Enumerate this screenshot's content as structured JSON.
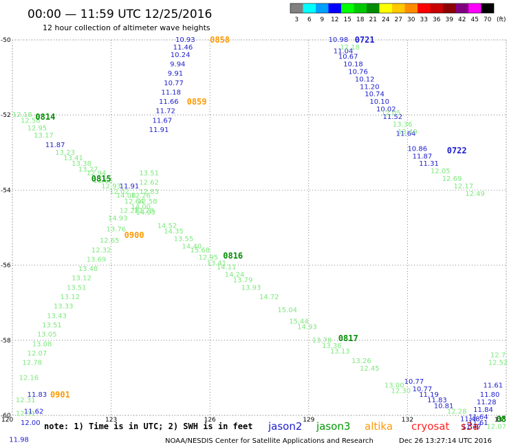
{
  "chart_data": {
    "type": "scatter",
    "title": "00:00 — 11:59 UTC 12/25/2016",
    "subtitle": "12 hour collection of altimeter wave heights",
    "xlim": [
      120,
      135
    ],
    "ylim": [
      -60,
      -50
    ],
    "x_ticks": [
      "120",
      "123",
      "126",
      "129",
      "132",
      "135"
    ],
    "y_ticks": [
      "-50",
      "-52",
      "-54",
      "-56",
      "-58",
      "-60"
    ],
    "grid": true,
    "colorbar": {
      "labels": [
        "3",
        "6",
        "9",
        "12",
        "15",
        "18",
        "21",
        "24",
        "27",
        "30",
        "33",
        "36",
        "39",
        "42",
        "45",
        "70"
      ],
      "unit": "(ft)",
      "colors": [
        "#808080",
        "#00ffff",
        "#00a0ff",
        "#0000ff",
        "#00ff00",
        "#00c800",
        "#008c00",
        "#ffff00",
        "#ffc800",
        "#ff8c00",
        "#ff0000",
        "#c80000",
        "#8b0000",
        "#800080",
        "#ff00ff",
        "#000000"
      ]
    },
    "series": [
      {
        "name": "jason2",
        "color": "#1c1ccd",
        "points": [
          [
            125.25,
            -50.0,
            "10.93"
          ],
          [
            125.18,
            -50.2,
            "11.46"
          ],
          [
            125.1,
            -50.4,
            "10.24"
          ],
          [
            125.02,
            -50.65,
            "9.94"
          ],
          [
            124.95,
            -50.9,
            "9.91"
          ],
          [
            124.9,
            -51.15,
            "10.77"
          ],
          [
            124.82,
            -51.4,
            "11.18"
          ],
          [
            124.75,
            -51.65,
            "11.66"
          ],
          [
            124.65,
            -51.9,
            "11.72"
          ],
          [
            124.55,
            -52.15,
            "11.67"
          ],
          [
            124.45,
            -52.4,
            "11.91"
          ],
          [
            121.3,
            -52.8,
            "11.87"
          ],
          [
            123.55,
            -53.9,
            "11.91"
          ],
          [
            129.9,
            -50.0,
            "10.98"
          ],
          [
            130.05,
            -50.3,
            "11.04"
          ],
          [
            130.2,
            -50.45,
            "10.67"
          ],
          [
            130.35,
            -50.65,
            "10.18"
          ],
          [
            130.5,
            -50.85,
            "10.76"
          ],
          [
            130.7,
            -51.05,
            "10.12"
          ],
          [
            130.85,
            -51.25,
            "11.20"
          ],
          [
            131.0,
            -51.45,
            "10.74"
          ],
          [
            131.15,
            -51.65,
            "10.10"
          ],
          [
            131.35,
            -51.85,
            "10.02"
          ],
          [
            131.55,
            -52.05,
            "11.52"
          ],
          [
            131.95,
            -52.5,
            "11.64"
          ],
          [
            132.3,
            -52.9,
            "10.86"
          ],
          [
            132.45,
            -53.1,
            "11.87"
          ],
          [
            132.65,
            -53.3,
            "11.31"
          ],
          [
            132.2,
            -59.1,
            "10.77"
          ],
          [
            132.45,
            -59.3,
            "10.77"
          ],
          [
            132.65,
            -59.45,
            "11.19"
          ],
          [
            132.9,
            -59.6,
            "11.83"
          ],
          [
            133.1,
            -59.75,
            "10.81"
          ],
          [
            134.6,
            -59.2,
            "11.61"
          ],
          [
            134.5,
            -59.45,
            "11.80"
          ],
          [
            134.4,
            -59.65,
            "11.28"
          ],
          [
            134.3,
            -59.85,
            "11.84"
          ],
          [
            134.15,
            -60.05,
            "11.64"
          ],
          [
            133.9,
            -60.1,
            "11.48"
          ],
          [
            134.15,
            -60.2,
            "11.61"
          ],
          [
            133.95,
            -60.3,
            "11.47"
          ],
          [
            120.75,
            -59.45,
            "11.83"
          ],
          [
            120.65,
            -59.9,
            "11.62"
          ],
          [
            120.55,
            -60.2,
            "12.00"
          ],
          [
            120.2,
            -60.65,
            "11.98"
          ]
        ]
      },
      {
        "name": "jason3",
        "color": "#7ce87c",
        "points": [
          [
            120.3,
            -52.0,
            "12.18"
          ],
          [
            120.55,
            -52.15,
            "12.58"
          ],
          [
            120.75,
            -52.35,
            "12.95"
          ],
          [
            120.95,
            -52.55,
            "13.17"
          ],
          [
            121.6,
            -53.0,
            "13.23"
          ],
          [
            121.85,
            -53.15,
            "13.41"
          ],
          [
            122.1,
            -53.3,
            "13.38"
          ],
          [
            122.3,
            -53.45,
            "13.27"
          ],
          [
            122.55,
            -53.55,
            "12.94"
          ],
          [
            122.75,
            -53.75,
            "13.68"
          ],
          [
            123.0,
            -53.9,
            "12.93"
          ],
          [
            123.25,
            -54.05,
            "12.02"
          ],
          [
            123.45,
            -54.15,
            "14.08"
          ],
          [
            123.7,
            -54.3,
            "12.64"
          ],
          [
            123.9,
            -54.45,
            "14.00"
          ],
          [
            124.05,
            -54.6,
            "14.93"
          ],
          [
            124.7,
            -54.95,
            "14.52"
          ],
          [
            124.9,
            -55.1,
            "14.35"
          ],
          [
            125.2,
            -55.3,
            "13.55"
          ],
          [
            125.45,
            -55.5,
            "14.40"
          ],
          [
            125.7,
            -55.6,
            "15.68"
          ],
          [
            125.95,
            -55.8,
            "12.95"
          ],
          [
            126.2,
            -55.95,
            "13.41"
          ],
          [
            126.5,
            -56.05,
            "14.11"
          ],
          [
            126.75,
            -56.25,
            "14.24"
          ],
          [
            127.0,
            -56.4,
            "13.79"
          ],
          [
            127.25,
            -56.6,
            "13.93"
          ],
          [
            127.8,
            -56.85,
            "14.72"
          ],
          [
            128.35,
            -57.2,
            "15.04"
          ],
          [
            128.7,
            -57.5,
            "15.44"
          ],
          [
            128.95,
            -57.65,
            "14.93"
          ],
          [
            129.4,
            -58.0,
            "13.78"
          ],
          [
            129.7,
            -58.15,
            "13.36"
          ],
          [
            129.95,
            -58.3,
            "13.13"
          ],
          [
            130.6,
            -58.55,
            "13.26"
          ],
          [
            130.85,
            -58.75,
            "12.45"
          ],
          [
            131.6,
            -59.2,
            "13.00"
          ],
          [
            131.8,
            -59.35,
            "12.30"
          ],
          [
            123.9,
            -54.15,
            "12.26"
          ],
          [
            123.55,
            -54.55,
            "12.28"
          ],
          [
            123.2,
            -54.75,
            "14.93"
          ],
          [
            123.15,
            -55.05,
            "13.76"
          ],
          [
            122.95,
            -55.35,
            "12.65"
          ],
          [
            122.7,
            -55.6,
            "12.32"
          ],
          [
            122.55,
            -55.85,
            "13.69"
          ],
          [
            122.3,
            -56.1,
            "13.48"
          ],
          [
            122.1,
            -56.35,
            "13.12"
          ],
          [
            121.95,
            -56.6,
            "13.51"
          ],
          [
            121.75,
            -56.85,
            "13.12"
          ],
          [
            121.55,
            -57.1,
            "13.33"
          ],
          [
            121.35,
            -57.35,
            "13.43"
          ],
          [
            121.2,
            -57.6,
            "13.51"
          ],
          [
            121.05,
            -57.85,
            "13.05"
          ],
          [
            120.9,
            -58.1,
            "13.08"
          ],
          [
            120.75,
            -58.35,
            "12.07"
          ],
          [
            120.6,
            -58.6,
            "12.78"
          ],
          [
            120.5,
            -59.0,
            "12.16"
          ],
          [
            120.4,
            -59.6,
            "12.31"
          ],
          [
            120.4,
            -59.95,
            "12.31"
          ],
          [
            124.15,
            -53.55,
            "13.51"
          ],
          [
            124.15,
            -53.8,
            "12.62"
          ],
          [
            124.15,
            -54.05,
            "12.83"
          ],
          [
            124.1,
            -54.3,
            "12.58"
          ],
          [
            124.0,
            -54.55,
            "12.28"
          ],
          [
            130.25,
            -50.2,
            "12.18"
          ],
          [
            131.5,
            -51.95,
            "12.05"
          ],
          [
            131.85,
            -52.25,
            "13.36"
          ],
          [
            132.0,
            -52.45,
            "13.49"
          ],
          [
            133.0,
            -53.5,
            "12.05"
          ],
          [
            133.35,
            -53.7,
            "12.69"
          ],
          [
            133.7,
            -53.9,
            "12.17"
          ],
          [
            134.05,
            -54.1,
            "12.49"
          ],
          [
            134.75,
            -58.4,
            "12.7"
          ],
          [
            134.75,
            -58.6,
            "12.52"
          ],
          [
            133.5,
            -59.9,
            "12.28"
          ],
          [
            134.7,
            -60.3,
            "12.07"
          ]
        ]
      }
    ],
    "pass_labels": [
      {
        "text": "0858",
        "series": "altika",
        "color": "#ff9900",
        "x": 126.3,
        "y": -50.0
      },
      {
        "text": "0859",
        "series": "altika",
        "color": "#ff9900",
        "x": 125.6,
        "y": -51.65
      },
      {
        "text": "0900",
        "series": "altika",
        "color": "#ff9900",
        "x": 123.7,
        "y": -55.2
      },
      {
        "text": "0901",
        "series": "altika",
        "color": "#ff9900",
        "x": 121.45,
        "y": -59.45
      },
      {
        "text": "0814",
        "series": "jason3",
        "color": "#008c00",
        "x": 121.0,
        "y": -52.05
      },
      {
        "text": "0815",
        "series": "jason3",
        "color": "#008c00",
        "x": 122.7,
        "y": -53.7
      },
      {
        "text": "0816",
        "series": "jason3",
        "color": "#008c00",
        "x": 126.7,
        "y": -55.75
      },
      {
        "text": "0817",
        "series": "jason3",
        "color": "#008c00",
        "x": 130.2,
        "y": -57.95
      },
      {
        "text": "0721",
        "series": "jason2",
        "color": "#1c1ccd",
        "x": 130.7,
        "y": -50.0
      },
      {
        "text": "0722",
        "series": "jason2",
        "color": "#1c1ccd",
        "x": 133.5,
        "y": -52.95
      },
      {
        "text": "08",
        "series": "jason3",
        "color": "#008c00",
        "x": 134.85,
        "y": -60.1
      }
    ],
    "note": "note: 1) Time is in UTC; 2) SWH is in feet",
    "legend": [
      {
        "name": "jason2",
        "color": "#1c1ccd"
      },
      {
        "name": "jason3",
        "color": "#009900"
      },
      {
        "name": "altika",
        "color": "#ff9900"
      },
      {
        "name": "cryosat",
        "color": "#ff2020"
      },
      {
        "name": "s3a",
        "color": "#cc0000"
      }
    ],
    "footer_left": "NOAA/NESDIS Center for Satellite Applications and Research",
    "footer_right": "Dec 26 13:27:14 UTC 2016"
  }
}
